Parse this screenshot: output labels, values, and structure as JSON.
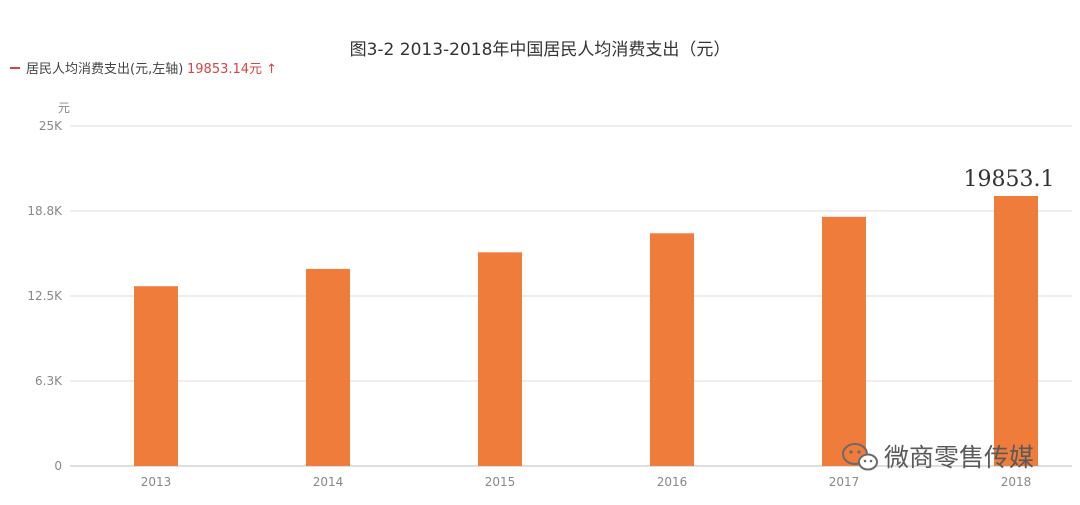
{
  "chart_data": {
    "type": "bar",
    "title": "图3-2 2013-2018年中国居民人均消费支出（元）",
    "legend": {
      "label": "居民人均消费支出(元,左轴)",
      "value": "19853.14元 ↑",
      "position": "top-left"
    },
    "ylabel": "元",
    "categories": [
      "2013",
      "2014",
      "2015",
      "2016",
      "2017",
      "2018"
    ],
    "values": [
      13220,
      14491,
      15712,
      17111,
      18322,
      19853
    ],
    "ylim": [
      0,
      25000
    ],
    "yticks": [
      {
        "value": 0,
        "label": "0"
      },
      {
        "value": 6250,
        "label": "6.3K"
      },
      {
        "value": 12500,
        "label": "12.5K"
      },
      {
        "value": 18750,
        "label": "18.8K"
      },
      {
        "value": 25000,
        "label": "25K"
      }
    ],
    "data_labels": [
      {
        "category": "2018",
        "text": "19853.1"
      }
    ],
    "grid": true,
    "colors": {
      "bar": "#f07c3c",
      "legend_marker": "#d64545"
    }
  },
  "watermark": {
    "text": "微商零售传媒",
    "icon": "wechat-icon"
  }
}
